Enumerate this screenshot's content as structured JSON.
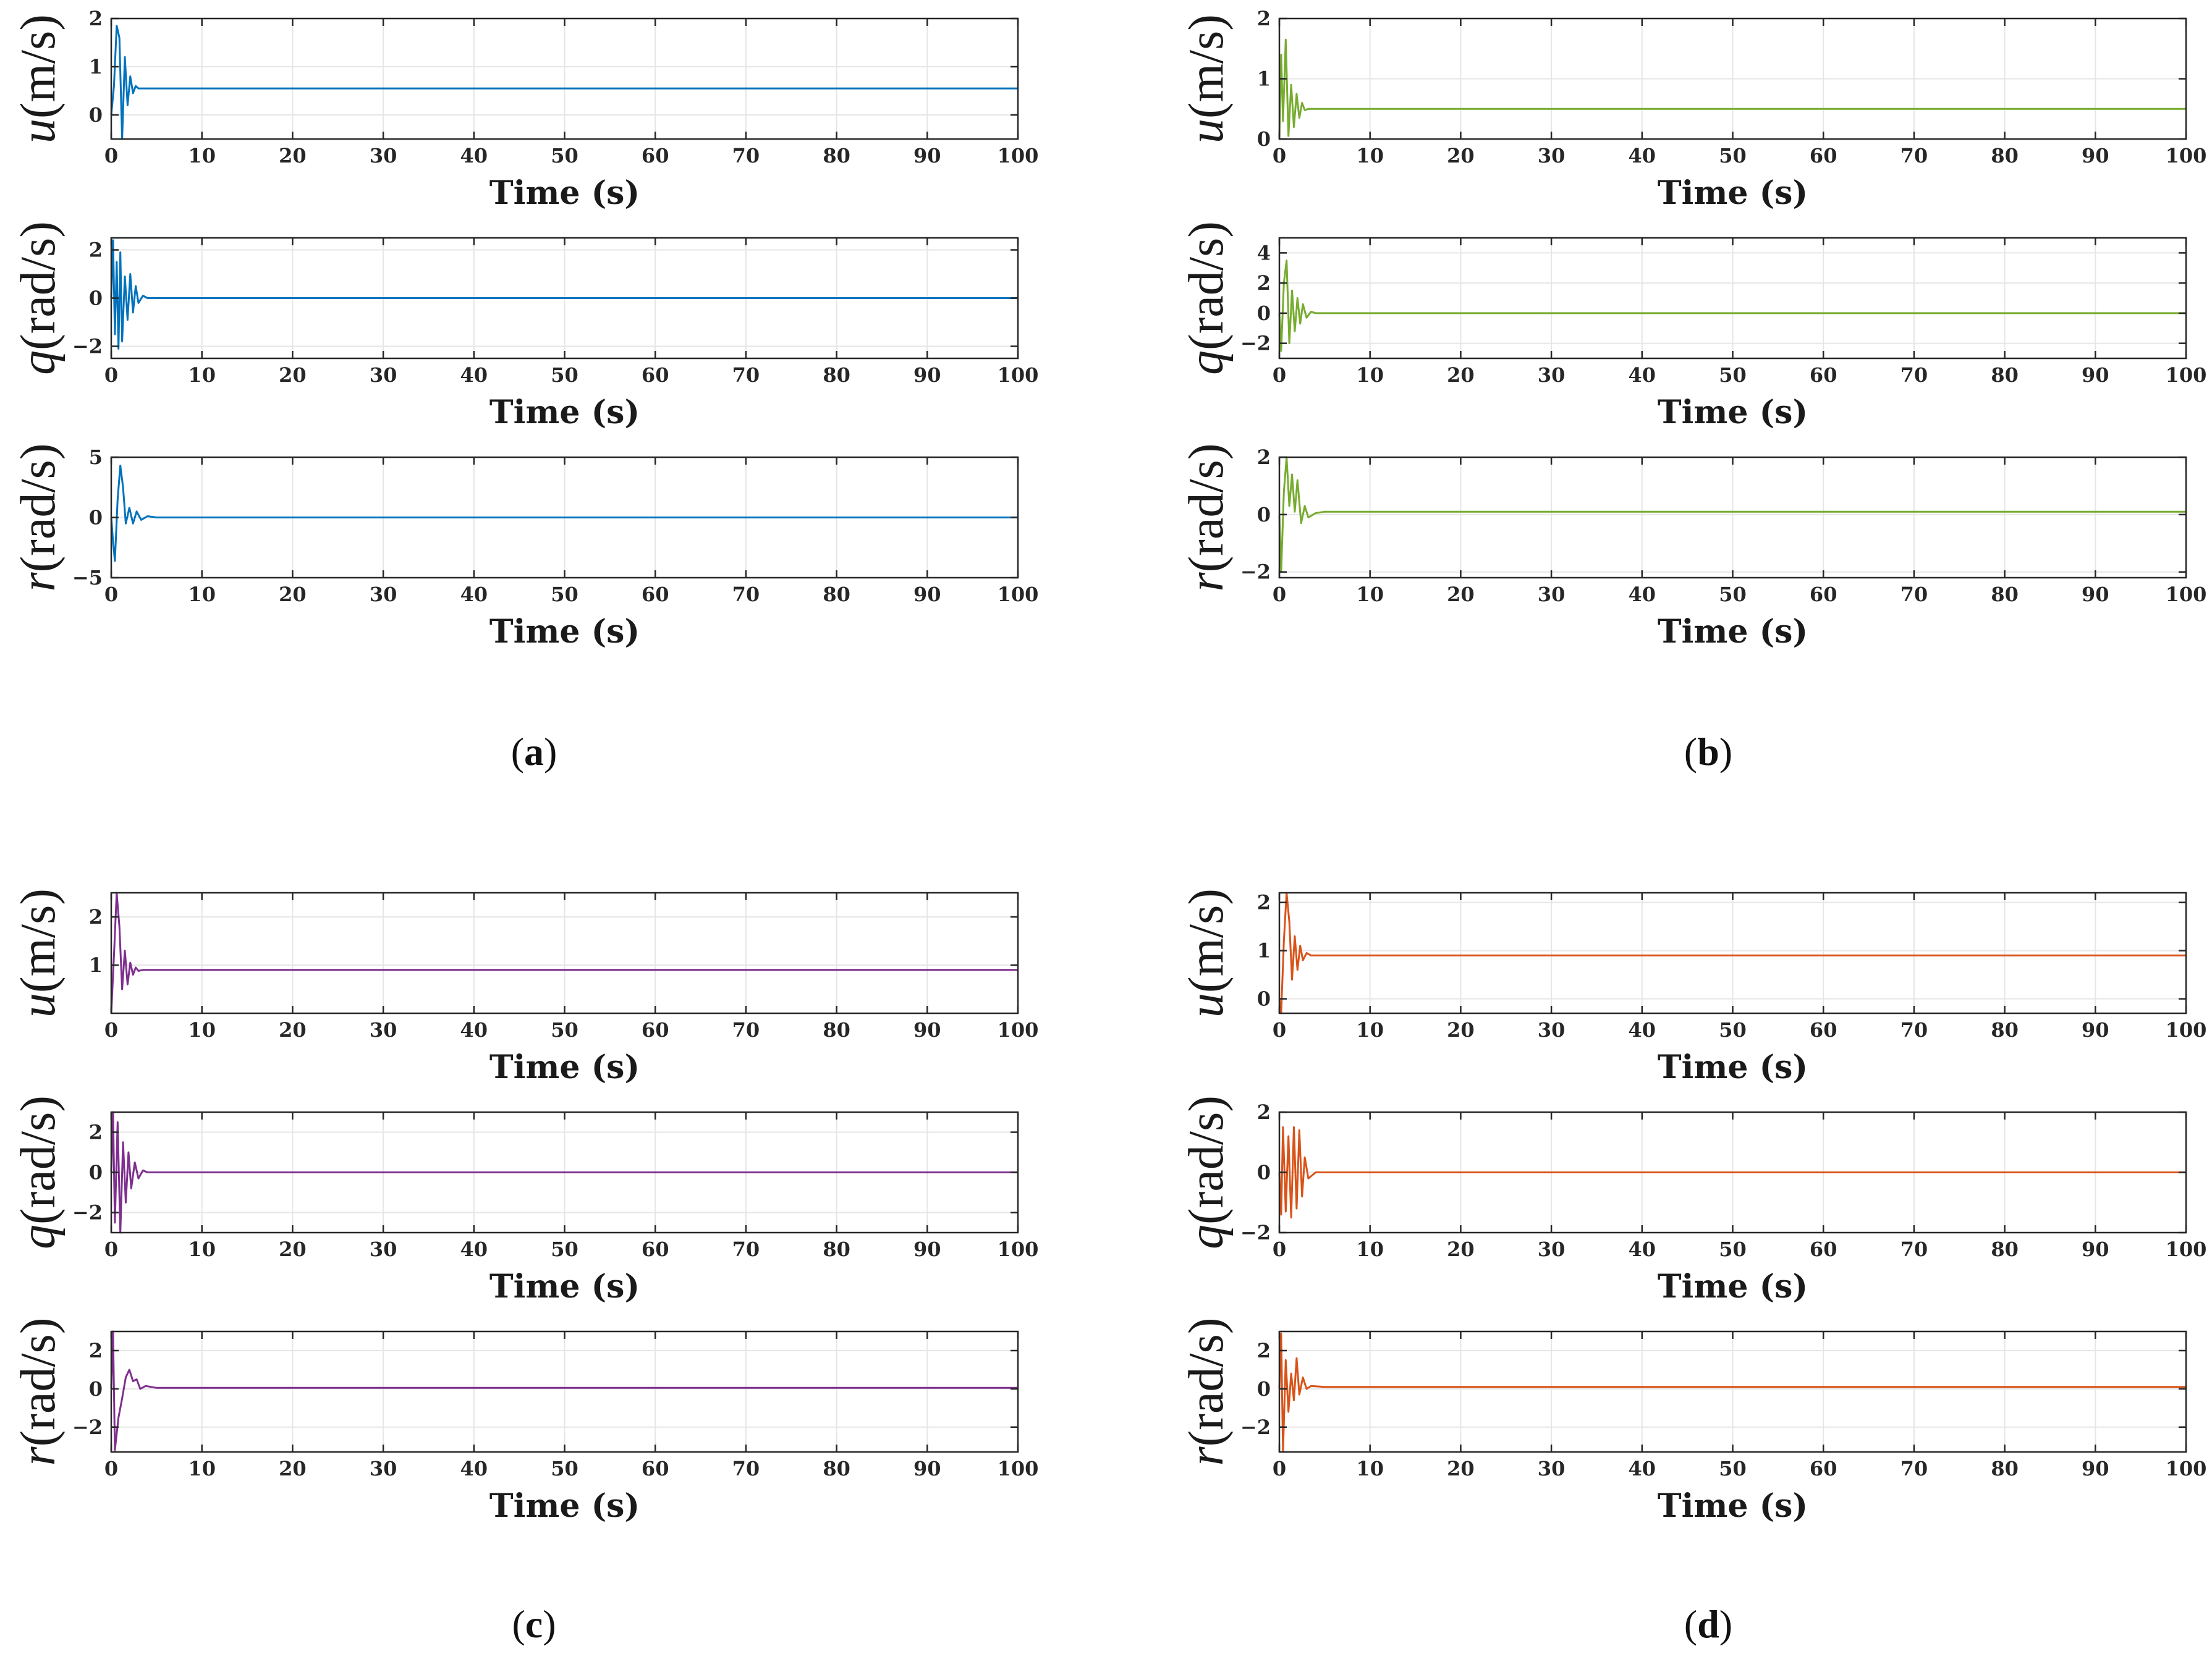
{
  "chart_data": [
    {
      "type": "line",
      "caption": "(a)",
      "color": "#0072BD",
      "xlim": [
        0,
        100
      ],
      "xticks": [
        0,
        10,
        20,
        30,
        40,
        50,
        60,
        70,
        80,
        90,
        100
      ],
      "subplots": [
        {
          "name": "u",
          "ylabel_symbol": "u",
          "ylabel_unit": "(m/s)",
          "xlabel": "Time (s)",
          "ylim": [
            -0.5,
            2
          ],
          "yticks": [
            0,
            1,
            2
          ],
          "steady": 0.55,
          "transient": [
            [
              0,
              0
            ],
            [
              0.3,
              0.6
            ],
            [
              0.6,
              1.85
            ],
            [
              0.9,
              1.6
            ],
            [
              1.2,
              -0.6
            ],
            [
              1.5,
              1.2
            ],
            [
              1.8,
              0.2
            ],
            [
              2.1,
              0.8
            ],
            [
              2.4,
              0.45
            ],
            [
              2.7,
              0.6
            ],
            [
              3.0,
              0.55
            ]
          ]
        },
        {
          "name": "q",
          "ylabel_symbol": "q",
          "ylabel_unit": "(rad/s)",
          "xlabel": "Time (s)",
          "ylim": [
            -2.5,
            2.5
          ],
          "yticks": [
            -2,
            0,
            2
          ],
          "steady": 0.0,
          "transient": [
            [
              0,
              0
            ],
            [
              0.2,
              2.4
            ],
            [
              0.4,
              -1.5
            ],
            [
              0.6,
              1.5
            ],
            [
              0.8,
              -2.1
            ],
            [
              1.0,
              1.9
            ],
            [
              1.2,
              -1.8
            ],
            [
              1.5,
              0.9
            ],
            [
              1.8,
              -0.9
            ],
            [
              2.1,
              1.0
            ],
            [
              2.4,
              -0.6
            ],
            [
              2.7,
              0.5
            ],
            [
              3.0,
              -0.2
            ],
            [
              3.5,
              0.1
            ],
            [
              4.0,
              0.0
            ]
          ]
        },
        {
          "name": "r",
          "ylabel_symbol": "r",
          "ylabel_unit": "(rad/s)",
          "xlabel": "Time (s)",
          "ylim": [
            -5,
            5
          ],
          "yticks": [
            -5,
            0,
            5
          ],
          "steady": 0.0,
          "transient": [
            [
              0,
              0
            ],
            [
              0.2,
              -2.0
            ],
            [
              0.4,
              -3.6
            ],
            [
              0.7,
              1.5
            ],
            [
              1.0,
              4.3
            ],
            [
              1.3,
              2.5
            ],
            [
              1.6,
              -0.5
            ],
            [
              2.0,
              0.8
            ],
            [
              2.4,
              -0.5
            ],
            [
              2.8,
              0.5
            ],
            [
              3.3,
              -0.2
            ],
            [
              4.0,
              0.1
            ],
            [
              5.0,
              0.0
            ]
          ]
        }
      ]
    },
    {
      "type": "line",
      "caption": "(b)",
      "color": "#77AC30",
      "xlim": [
        0,
        100
      ],
      "xticks": [
        0,
        10,
        20,
        30,
        40,
        50,
        60,
        70,
        80,
        90,
        100
      ],
      "subplots": [
        {
          "name": "u",
          "ylabel_symbol": "u",
          "ylabel_unit": "(m/s)",
          "xlabel": "Time (s)",
          "ylim": [
            0,
            2
          ],
          "yticks": [
            0,
            1,
            2
          ],
          "steady": 0.5,
          "transient": [
            [
              0,
              0
            ],
            [
              0.2,
              1.4
            ],
            [
              0.4,
              0.3
            ],
            [
              0.7,
              1.65
            ],
            [
              1.0,
              0.05
            ],
            [
              1.3,
              0.9
            ],
            [
              1.6,
              0.2
            ],
            [
              1.9,
              0.75
            ],
            [
              2.2,
              0.35
            ],
            [
              2.5,
              0.6
            ],
            [
              2.8,
              0.48
            ],
            [
              3.2,
              0.5
            ]
          ]
        },
        {
          "name": "q",
          "ylabel_symbol": "q",
          "ylabel_unit": "(rad/s)",
          "xlabel": "Time (s)",
          "ylim": [
            -3,
            5
          ],
          "yticks": [
            -2,
            0,
            2,
            4
          ],
          "steady": 0.0,
          "transient": [
            [
              0,
              0
            ],
            [
              0.2,
              -2.5
            ],
            [
              0.5,
              2.0
            ],
            [
              0.8,
              3.5
            ],
            [
              1.1,
              -2.0
            ],
            [
              1.4,
              1.5
            ],
            [
              1.7,
              -1.2
            ],
            [
              2.0,
              1.0
            ],
            [
              2.3,
              -0.7
            ],
            [
              2.6,
              0.6
            ],
            [
              3.0,
              -0.3
            ],
            [
              3.5,
              0.1
            ],
            [
              4.0,
              0.0
            ]
          ]
        },
        {
          "name": "r",
          "ylabel_symbol": "r",
          "ylabel_unit": "(rad/s)",
          "xlabel": "Time (s)",
          "ylim": [
            -2.2,
            2
          ],
          "yticks": [
            -2,
            0,
            2
          ],
          "steady": 0.1,
          "transient": [
            [
              0,
              0
            ],
            [
              0.2,
              -2.0
            ],
            [
              0.5,
              0.8
            ],
            [
              0.8,
              2.0
            ],
            [
              1.1,
              0.3
            ],
            [
              1.4,
              1.4
            ],
            [
              1.7,
              0.1
            ],
            [
              2.0,
              1.2
            ],
            [
              2.4,
              -0.3
            ],
            [
              2.8,
              0.3
            ],
            [
              3.2,
              -0.1
            ],
            [
              4.0,
              0.05
            ],
            [
              5.0,
              0.1
            ]
          ]
        }
      ]
    },
    {
      "type": "line",
      "caption": "(c)",
      "color": "#7E2F8E",
      "xlim": [
        0,
        100
      ],
      "xticks": [
        0,
        10,
        20,
        30,
        40,
        50,
        60,
        70,
        80,
        90,
        100
      ],
      "subplots": [
        {
          "name": "u",
          "ylabel_symbol": "u",
          "ylabel_unit": "(m/s)",
          "xlabel": "Time (s)",
          "ylim": [
            0,
            2.5
          ],
          "yticks": [
            1,
            2
          ],
          "steady": 0.9,
          "transient": [
            [
              0,
              0
            ],
            [
              0.3,
              1.2
            ],
            [
              0.6,
              2.5
            ],
            [
              0.9,
              1.8
            ],
            [
              1.2,
              0.5
            ],
            [
              1.5,
              1.3
            ],
            [
              1.8,
              0.6
            ],
            [
              2.1,
              1.05
            ],
            [
              2.4,
              0.8
            ],
            [
              2.7,
              0.95
            ],
            [
              3.0,
              0.88
            ],
            [
              3.5,
              0.9
            ]
          ]
        },
        {
          "name": "q",
          "ylabel_symbol": "q",
          "ylabel_unit": "(rad/s)",
          "xlabel": "Time (s)",
          "ylim": [
            -3,
            3
          ],
          "yticks": [
            -2,
            0,
            2
          ],
          "steady": 0.0,
          "transient": [
            [
              0,
              0
            ],
            [
              0.2,
              3.0
            ],
            [
              0.4,
              -2.5
            ],
            [
              0.7,
              2.5
            ],
            [
              1.0,
              -3.0
            ],
            [
              1.3,
              1.5
            ],
            [
              1.6,
              -1.5
            ],
            [
              1.9,
              1.0
            ],
            [
              2.2,
              -0.8
            ],
            [
              2.6,
              0.5
            ],
            [
              3.0,
              -0.3
            ],
            [
              3.5,
              0.1
            ],
            [
              4.0,
              0.0
            ]
          ]
        },
        {
          "name": "r",
          "ylabel_symbol": "r",
          "ylabel_unit": "(rad/s)",
          "xlabel": "Time (s)",
          "ylim": [
            -3.3,
            3
          ],
          "yticks": [
            -2,
            0,
            2
          ],
          "steady": 0.05,
          "transient": [
            [
              0,
              0
            ],
            [
              0.2,
              3.0
            ],
            [
              0.4,
              -3.2
            ],
            [
              0.8,
              -1.5
            ],
            [
              1.2,
              -0.5
            ],
            [
              1.6,
              0.6
            ],
            [
              2.0,
              1.0
            ],
            [
              2.4,
              0.4
            ],
            [
              2.8,
              0.5
            ],
            [
              3.2,
              0.0
            ],
            [
              3.8,
              0.15
            ],
            [
              5.0,
              0.05
            ]
          ]
        }
      ]
    },
    {
      "type": "line",
      "caption": "(d)",
      "color": "#D95319",
      "xlim": [
        0,
        100
      ],
      "xticks": [
        0,
        10,
        20,
        30,
        40,
        50,
        60,
        70,
        80,
        90,
        100
      ],
      "subplots": [
        {
          "name": "u",
          "ylabel_symbol": "u",
          "ylabel_unit": "(m/s)",
          "xlabel": "Time (s)",
          "ylim": [
            -0.3,
            2.2
          ],
          "yticks": [
            0,
            1,
            2
          ],
          "steady": 0.9,
          "transient": [
            [
              0,
              0
            ],
            [
              0.2,
              -0.3
            ],
            [
              0.5,
              1.2
            ],
            [
              0.8,
              2.2
            ],
            [
              1.1,
              1.6
            ],
            [
              1.4,
              0.4
            ],
            [
              1.7,
              1.3
            ],
            [
              2.0,
              0.6
            ],
            [
              2.3,
              1.1
            ],
            [
              2.6,
              0.8
            ],
            [
              3.0,
              0.95
            ],
            [
              3.5,
              0.9
            ]
          ]
        },
        {
          "name": "q",
          "ylabel_symbol": "q",
          "ylabel_unit": "(rad/s)",
          "xlabel": "Time (s)",
          "ylim": [
            -2,
            2
          ],
          "yticks": [
            -2,
            0,
            2
          ],
          "steady": 0.0,
          "transient": [
            [
              0,
              0
            ],
            [
              0.2,
              -1.4
            ],
            [
              0.4,
              1.5
            ],
            [
              0.7,
              -1.3
            ],
            [
              1.0,
              1.2
            ],
            [
              1.3,
              -1.5
            ],
            [
              1.6,
              1.5
            ],
            [
              1.9,
              -1.2
            ],
            [
              2.2,
              1.4
            ],
            [
              2.5,
              -0.8
            ],
            [
              2.8,
              0.5
            ],
            [
              3.2,
              -0.2
            ],
            [
              4.0,
              0.0
            ]
          ]
        },
        {
          "name": "r",
          "ylabel_symbol": "r",
          "ylabel_unit": "(rad/s)",
          "xlabel": "Time (s)",
          "ylim": [
            -3.3,
            3
          ],
          "yticks": [
            -2,
            0,
            2
          ],
          "steady": 0.1,
          "transient": [
            [
              0,
              0
            ],
            [
              0.2,
              2.9
            ],
            [
              0.4,
              -3.3
            ],
            [
              0.7,
              1.5
            ],
            [
              1.0,
              -1.2
            ],
            [
              1.3,
              0.8
            ],
            [
              1.6,
              -0.6
            ],
            [
              1.9,
              1.6
            ],
            [
              2.2,
              -0.3
            ],
            [
              2.6,
              0.6
            ],
            [
              3.0,
              0.0
            ],
            [
              3.5,
              0.15
            ],
            [
              5.0,
              0.1
            ]
          ]
        }
      ]
    }
  ]
}
